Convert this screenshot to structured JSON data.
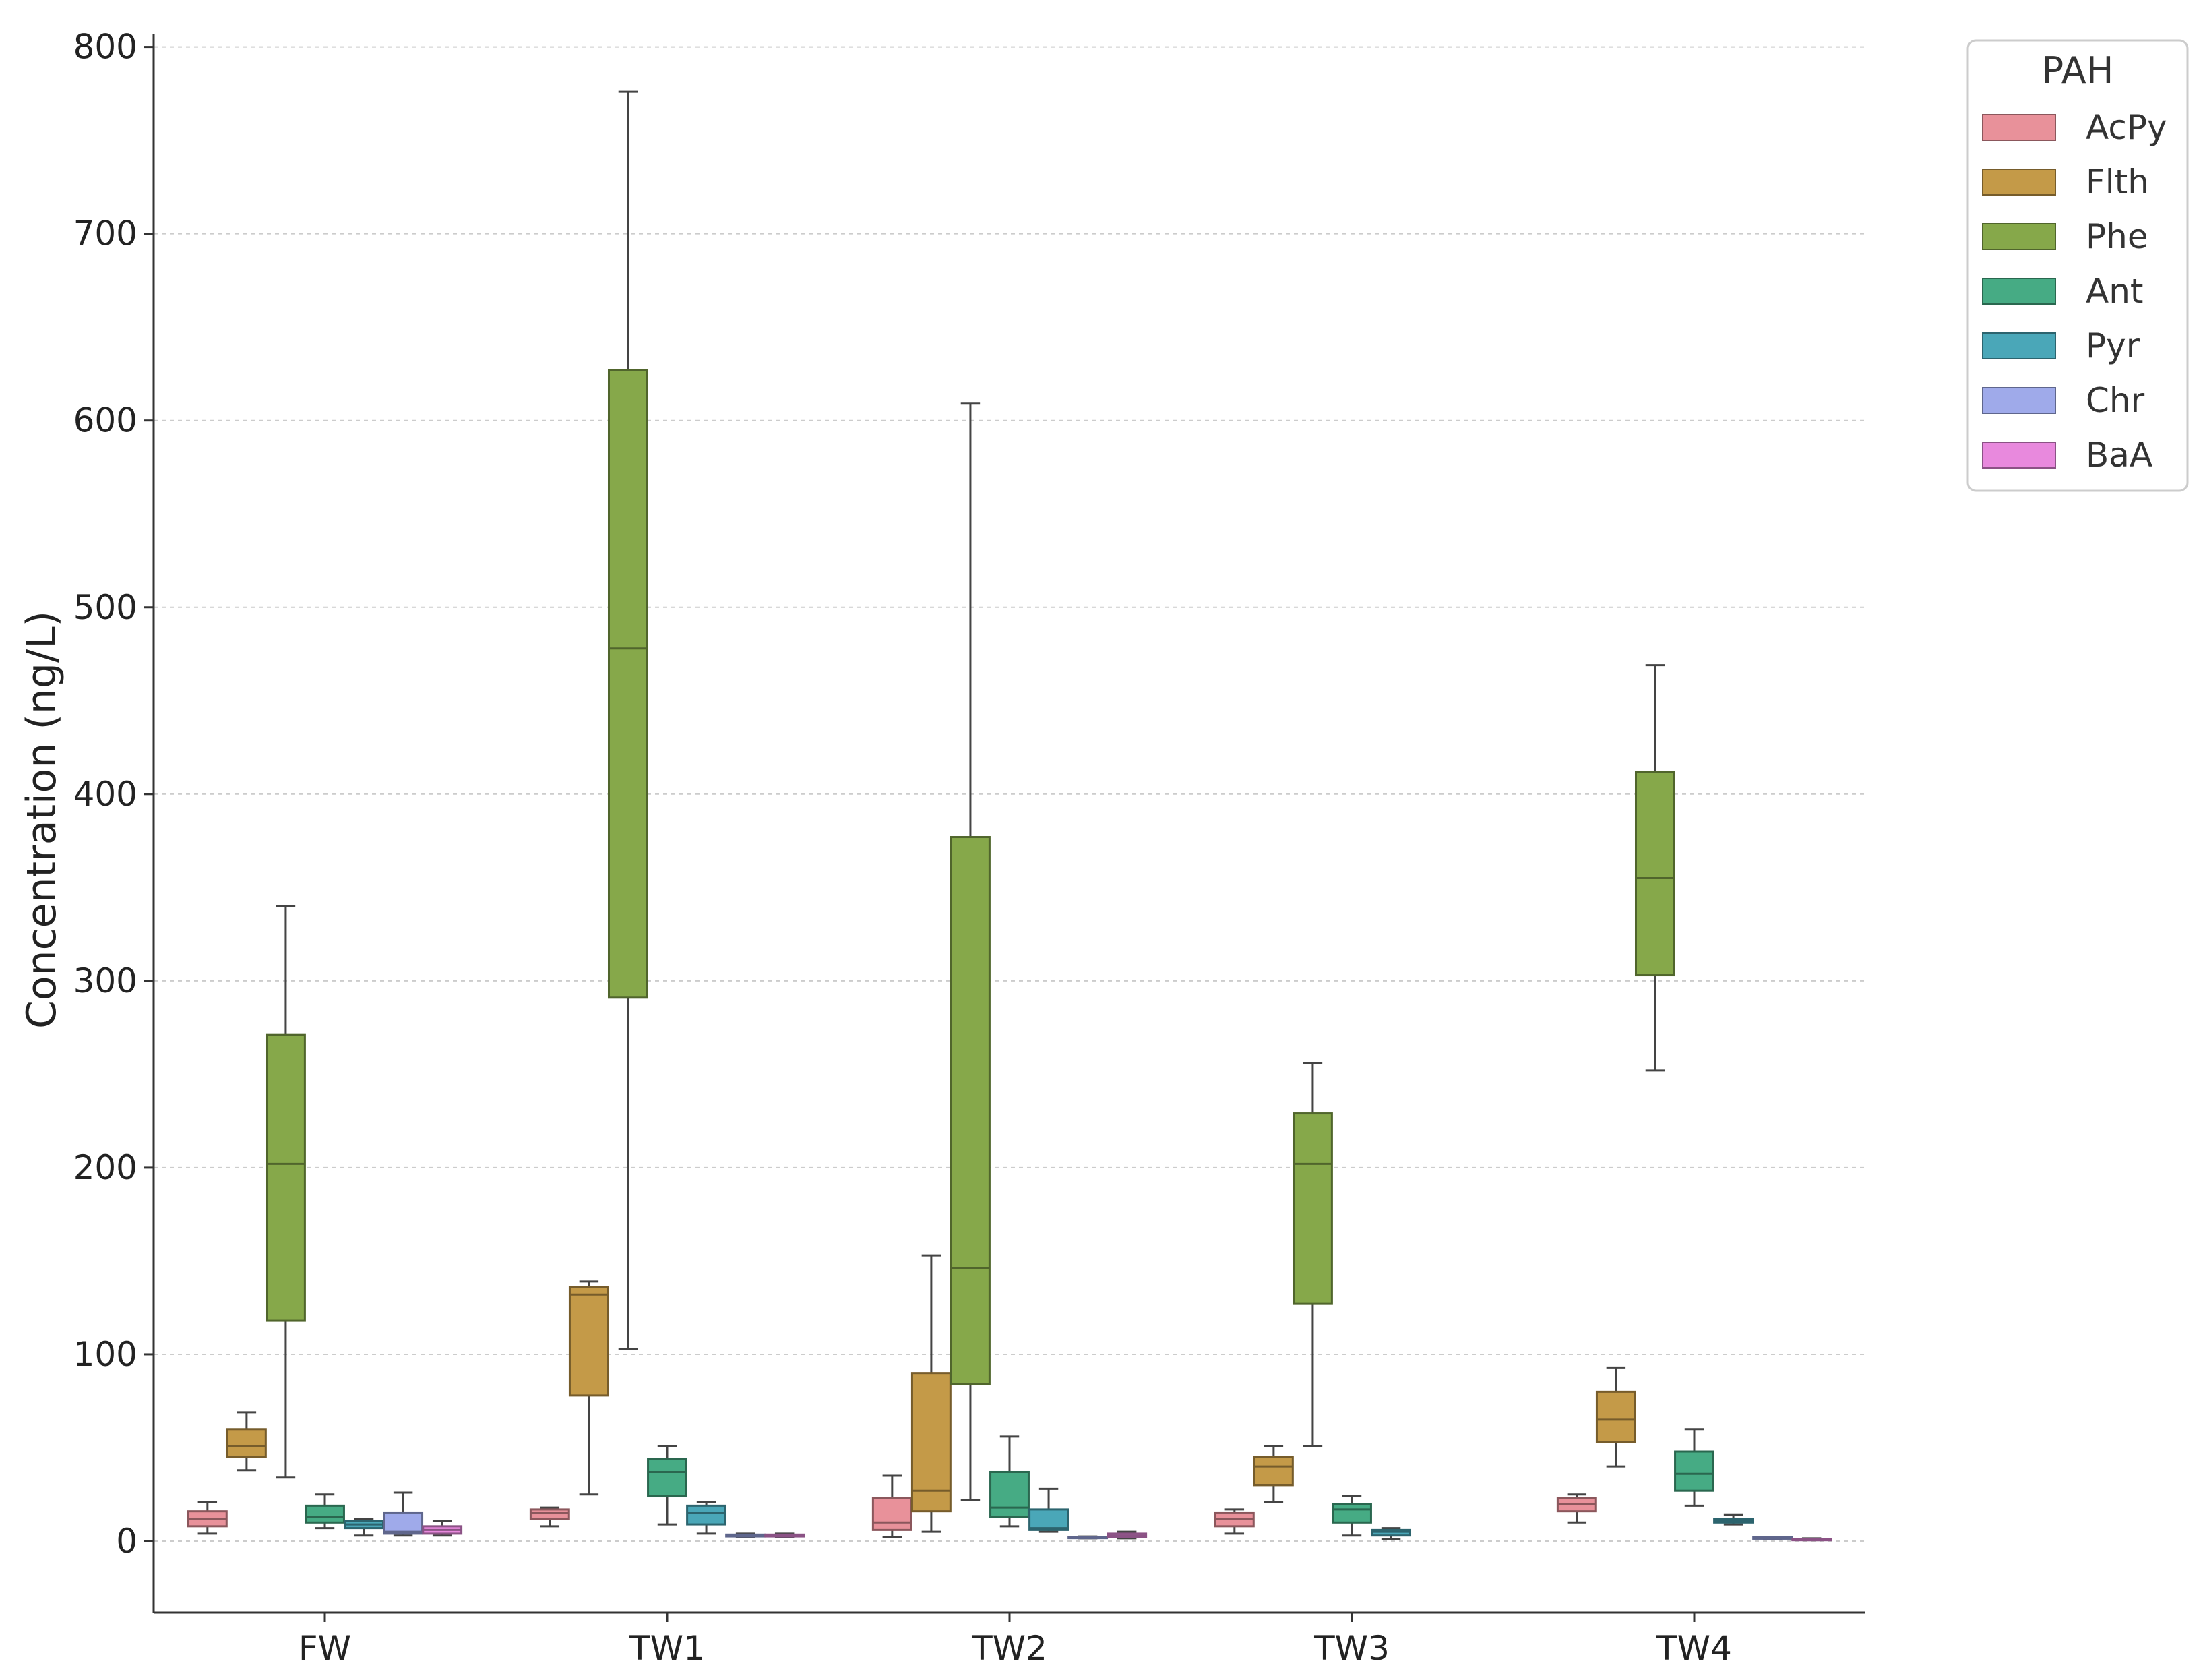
{
  "chart_data": {
    "type": "boxplot",
    "title": "",
    "xlabel": "",
    "ylabel": "Concentration (ng/L)",
    "ylim": [
      -38,
      808
    ],
    "yticks": [
      0,
      100,
      200,
      300,
      400,
      500,
      600,
      700,
      800
    ],
    "ytick_labels": [
      "0",
      "100",
      "200",
      "300",
      "400",
      "500",
      "600",
      "700",
      "800"
    ],
    "grid": "horizontal dashed",
    "categories": [
      "FW",
      "TW1",
      "TW2",
      "TW3",
      "TW4"
    ],
    "legend": {
      "title": "PAH",
      "placement": "outside top-right"
    },
    "series": [
      {
        "name": "AcPy",
        "color": "#E8919A",
        "boxes": [
          {
            "min": 4,
            "q1": 8,
            "median": 12,
            "q3": 16,
            "max": 21
          },
          {
            "min": 8,
            "q1": 12,
            "median": 15,
            "q3": 17,
            "max": 18
          },
          {
            "min": 2,
            "q1": 6,
            "median": 10,
            "q3": 23,
            "max": 35
          },
          {
            "min": 4,
            "q1": 8,
            "median": 12,
            "q3": 15,
            "max": 17
          },
          {
            "min": 10,
            "q1": 16,
            "median": 20,
            "q3": 23,
            "max": 25
          }
        ]
      },
      {
        "name": "Flth",
        "color": "#C49A48",
        "boxes": [
          {
            "min": 38,
            "q1": 45,
            "median": 51,
            "q3": 60,
            "max": 69
          },
          {
            "min": 25,
            "q1": 78,
            "median": 132,
            "q3": 136,
            "max": 139
          },
          {
            "min": 5,
            "q1": 16,
            "median": 27,
            "q3": 90,
            "max": 153
          },
          {
            "min": 21,
            "q1": 30,
            "median": 40,
            "q3": 45,
            "max": 51
          },
          {
            "min": 40,
            "q1": 53,
            "median": 65,
            "q3": 80,
            "max": 93
          }
        ]
      },
      {
        "name": "Phe",
        "color": "#86A84A",
        "boxes": [
          {
            "min": 34,
            "q1": 118,
            "median": 202,
            "q3": 271,
            "max": 340
          },
          {
            "min": 103,
            "q1": 291,
            "median": 478,
            "q3": 627,
            "max": 776
          },
          {
            "min": 22,
            "q1": 84,
            "median": 146,
            "q3": 377,
            "max": 609
          },
          {
            "min": 51,
            "q1": 127,
            "median": 202,
            "q3": 229,
            "max": 256
          },
          {
            "min": 252,
            "q1": 303,
            "median": 355,
            "q3": 412,
            "max": 469
          }
        ]
      },
      {
        "name": "Ant",
        "color": "#46AB84",
        "boxes": [
          {
            "min": 7,
            "q1": 10,
            "median": 13,
            "q3": 19,
            "max": 25
          },
          {
            "min": 9,
            "q1": 24,
            "median": 37,
            "q3": 44,
            "max": 51
          },
          {
            "min": 8,
            "q1": 13,
            "median": 18,
            "q3": 37,
            "max": 56
          },
          {
            "min": 3,
            "q1": 10,
            "median": 17,
            "q3": 20,
            "max": 24
          },
          {
            "min": 19,
            "q1": 27,
            "median": 36,
            "q3": 48,
            "max": 60
          }
        ]
      },
      {
        "name": "Pyr",
        "color": "#4AA7B8",
        "boxes": [
          {
            "min": 3,
            "q1": 7,
            "median": 9,
            "q3": 11,
            "max": 12
          },
          {
            "min": 4,
            "q1": 9,
            "median": 15,
            "q3": 19,
            "max": 21
          },
          {
            "min": 5,
            "q1": 6,
            "median": 7,
            "q3": 17,
            "max": 28
          },
          {
            "min": 1,
            "q1": 3,
            "median": 5,
            "q3": 6,
            "max": 7
          },
          {
            "min": 9,
            "q1": 10,
            "median": 11,
            "q3": 12,
            "max": 14
          }
        ]
      },
      {
        "name": "Chr",
        "color": "#9FAAEA",
        "boxes": [
          {
            "min": 3,
            "q1": 4,
            "median": 5,
            "q3": 15,
            "max": 26
          },
          {
            "min": 2,
            "q1": 2.5,
            "median": 3,
            "q3": 3.5,
            "max": 4
          },
          {
            "min": 1.5,
            "q1": 2,
            "median": 2,
            "q3": 2.3,
            "max": 2.5
          },
          null,
          {
            "min": 1,
            "q1": 1.5,
            "median": 1.8,
            "q3": 2,
            "max": 2.3
          }
        ]
      },
      {
        "name": "BaA",
        "color": "#E889DD",
        "boxes": [
          {
            "min": 3,
            "q1": 4,
            "median": 6,
            "q3": 8,
            "max": 11
          },
          {
            "min": 2,
            "q1": 2.5,
            "median": 3,
            "q3": 3.5,
            "max": 4
          },
          {
            "min": 1.5,
            "q1": 2,
            "median": 3,
            "q3": 4,
            "max": 5
          },
          null,
          {
            "min": 0.5,
            "q1": 0.8,
            "median": 1,
            "q3": 1.2,
            "max": 1.5
          }
        ]
      }
    ]
  }
}
